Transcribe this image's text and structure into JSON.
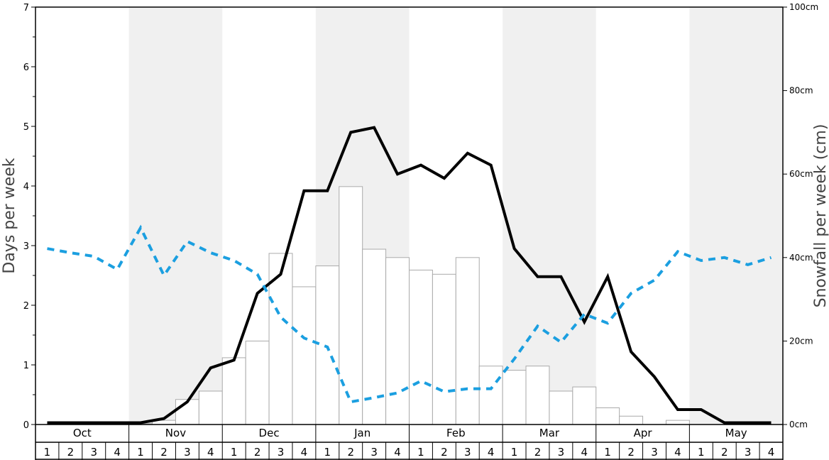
{
  "chart_data": {
    "type": "bar",
    "ylabel_left": "Days per week",
    "ylabel_right": "Snowfall per week (cm)",
    "left_axis": {
      "min": 0,
      "max": 7,
      "ticks": [
        "0",
        "1",
        "2",
        "3",
        "4",
        "5",
        "6",
        "7"
      ]
    },
    "right_axis": {
      "min": 0,
      "max": 100,
      "ticks": [
        "0cm",
        "20cm",
        "40cm",
        "60cm",
        "80cm",
        "100cm"
      ]
    },
    "months": [
      "Oct",
      "Nov",
      "Dec",
      "Jan",
      "Feb",
      "Mar",
      "Apr",
      "May"
    ],
    "weeks": [
      "1",
      "2",
      "3",
      "4"
    ],
    "grid": false,
    "shaded_months": [
      "Nov",
      "Jan",
      "Mar",
      "May"
    ],
    "colors": {
      "shade": "#f0f0f0",
      "bar_fill": "#ffffff",
      "bar_stroke": "#aaaaaa",
      "snow_days_line": "#000000",
      "dashed_line": "#1b9fe0"
    },
    "series": [
      {
        "type": "bar",
        "axis": "right",
        "values": [
          0,
          0,
          0,
          0,
          0.2,
          1,
          6,
          8,
          16,
          20,
          41,
          33,
          38,
          57,
          42,
          40,
          37,
          36,
          40,
          14,
          13,
          14,
          8,
          9,
          4,
          2,
          0,
          1,
          0,
          0,
          0,
          0
        ]
      },
      {
        "type": "line",
        "axis": "left",
        "style": "solid",
        "values": [
          0.03,
          0.03,
          0.03,
          0.03,
          0.03,
          0.1,
          0.38,
          0.95,
          1.08,
          2.2,
          2.52,
          3.92,
          3.92,
          4.9,
          4.98,
          4.2,
          4.35,
          4.13,
          4.55,
          4.35,
          2.95,
          2.48,
          2.48,
          1.72,
          2.48,
          1.22,
          0.8,
          0.25,
          0.25,
          0.03,
          0.03,
          0.03
        ]
      },
      {
        "type": "line",
        "axis": "left",
        "style": "dashed",
        "values": [
          2.95,
          2.88,
          2.82,
          2.6,
          3.3,
          2.5,
          3.07,
          2.88,
          2.75,
          2.52,
          1.8,
          1.45,
          1.3,
          0.38,
          0.45,
          0.53,
          0.73,
          0.55,
          0.6,
          0.6,
          1.1,
          1.65,
          1.38,
          1.85,
          1.7,
          2.2,
          2.42,
          2.9,
          2.75,
          2.8,
          2.68,
          2.8
        ]
      }
    ]
  }
}
